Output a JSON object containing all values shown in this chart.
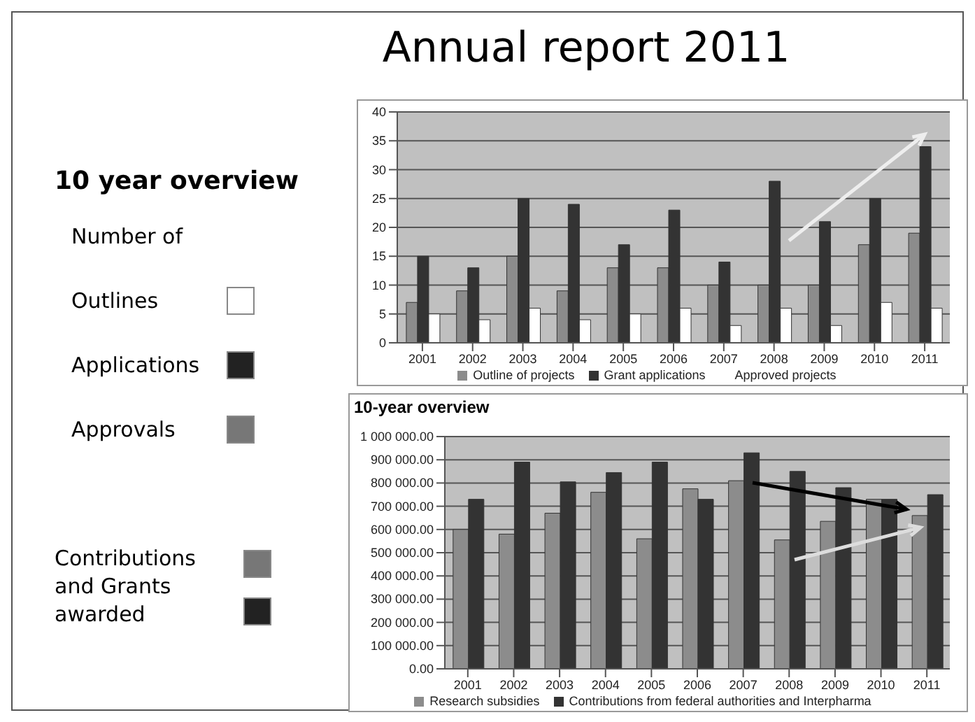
{
  "chart_data": [
    {
      "type": "other",
      "title": "Annual report 2011",
      "subtitle": "10 year overview",
      "annotations": [
        "Number of",
        "Outlines",
        "Applications",
        "Approvals",
        "Contributions and Grants awarded"
      ]
    },
    {
      "type": "bar",
      "categories": [
        "2001",
        "2002",
        "2003",
        "2004",
        "2005",
        "2006",
        "2007",
        "2008",
        "2009",
        "2010",
        "2011"
      ],
      "series": [
        {
          "name": "Outline of projects",
          "color": "#8c8c8c",
          "values": [
            7,
            9,
            15,
            9,
            13,
            13,
            10,
            10,
            10,
            17,
            19
          ]
        },
        {
          "name": "Grant applications",
          "color": "#333333",
          "values": [
            15,
            13,
            25,
            24,
            17,
            23,
            14,
            28,
            21,
            25,
            34
          ]
        },
        {
          "name": "Approved projects",
          "color": "#ffffff",
          "values": [
            5,
            4,
            6,
            4,
            5,
            6,
            3,
            6,
            3,
            7,
            6
          ]
        }
      ],
      "ylim": [
        0,
        40
      ],
      "yticks": [
        0,
        5,
        10,
        15,
        20,
        25,
        30,
        35,
        40
      ],
      "grid": "y",
      "legend": "bottom"
    },
    {
      "type": "bar",
      "title": "10-year overview",
      "categories": [
        "2001",
        "2002",
        "2003",
        "2004",
        "2005",
        "2006",
        "2007",
        "2008",
        "2009",
        "2010",
        "2011"
      ],
      "series": [
        {
          "name": "Research subsidies",
          "color": "#8c8c8c",
          "values": [
            600000,
            580000,
            670000,
            760000,
            560000,
            775000,
            810000,
            555000,
            635000,
            730000,
            660000
          ]
        },
        {
          "name": "Contributions from federal authorities and Interpharma",
          "color": "#333333",
          "values": [
            730000,
            890000,
            805000,
            845000,
            890000,
            730000,
            930000,
            850000,
            780000,
            730000,
            750000
          ]
        }
      ],
      "ylim": [
        0,
        1000000
      ],
      "yticks": [
        {
          "value": 0,
          "label": "0.00"
        },
        {
          "value": 100000,
          "label": "100 000.00"
        },
        {
          "value": 200000,
          "label": "200 000.00"
        },
        {
          "value": 300000,
          "label": "300 000.00"
        },
        {
          "value": 400000,
          "label": "400 000.00"
        },
        {
          "value": 500000,
          "label": "500 000.00"
        },
        {
          "value": 600000,
          "label": "600 000.00"
        },
        {
          "value": 700000,
          "label": "700 000.00"
        },
        {
          "value": 800000,
          "label": "800 000.00"
        },
        {
          "value": 900000,
          "label": "900 000.00"
        },
        {
          "value": 1000000,
          "label": "1 000 000.00"
        }
      ],
      "grid": "y",
      "legend": "bottom"
    }
  ]
}
